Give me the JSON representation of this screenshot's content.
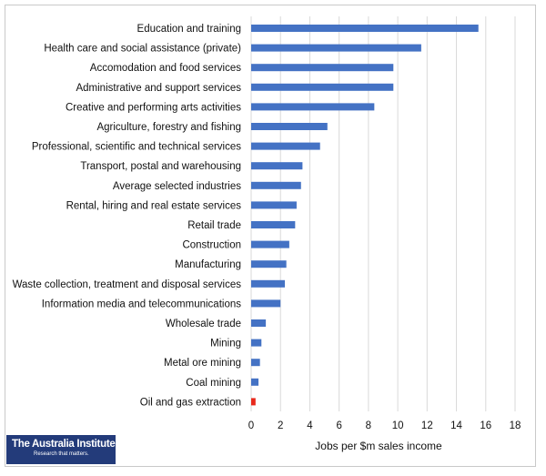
{
  "chart_data": {
    "type": "bar",
    "orientation": "horizontal",
    "categories": [
      "Education and training",
      "Health care and social assistance (private)",
      "Accomodation and food services",
      "Administrative and support services",
      "Creative and performing arts activities",
      "Agriculture, forestry and fishing",
      "Professional, scientific and technical services",
      "Transport, postal and warehousing",
      "Average selected industries",
      "Rental, hiring and real estate services",
      "Retail trade",
      "Construction",
      "Manufacturing",
      "Waste collection, treatment and disposal services",
      "Information media and telecommunications",
      "Wholesale trade",
      "Mining",
      "Metal ore mining",
      "Coal mining",
      "Oil and gas extraction"
    ],
    "values": [
      15.5,
      11.6,
      9.7,
      9.7,
      8.4,
      5.2,
      4.7,
      3.5,
      3.4,
      3.1,
      3.0,
      2.6,
      2.4,
      2.3,
      2.0,
      1.0,
      0.7,
      0.6,
      0.5,
      0.3
    ],
    "highlight_category": "Oil and gas extraction",
    "xlim": [
      0,
      18
    ],
    "xticks": [
      0,
      2,
      4,
      6,
      8,
      10,
      12,
      14,
      16,
      18
    ],
    "xlabel": "Jobs per $m sales income",
    "ylabel": "",
    "title": "",
    "grid": true,
    "bar_color": "#4472c4",
    "highlight_color": "#e8291c"
  },
  "logo": {
    "name": "The Australia Institute",
    "tagline": "Research that matters."
  }
}
